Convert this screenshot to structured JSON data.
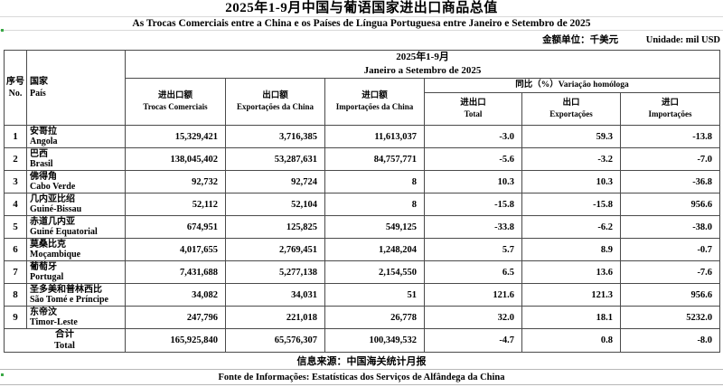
{
  "page": {
    "title_zh": "2025年1-9月中国与葡语国家进出口商品总值",
    "title_pt": "As Trocas Comerciais entre a China e os Países de Língua Portuguesa entre Janeiro e Setembro de 2025",
    "unit_zh": "金额单位：千美元",
    "unit_pt": "Unidade: mil USD"
  },
  "table": {
    "header": {
      "no_zh": "序号",
      "no_pt": "No.",
      "country_zh": "国家",
      "country_pt": "País",
      "period_zh": "2025年1-9月",
      "period_pt": "Janeiro a Setembro de 2025",
      "yoy": "同比（%）Variação homóloga",
      "cols": [
        {
          "zh": "进出口额",
          "pt": "Trocas Comerciais"
        },
        {
          "zh": "出口额",
          "pt": "Exportações da China"
        },
        {
          "zh": "进口额",
          "pt": "Importações da China"
        },
        {
          "zh": "进出口",
          "pt": "Total"
        },
        {
          "zh": "出口",
          "pt": "Exportações"
        },
        {
          "zh": "进口",
          "pt": "Importações"
        }
      ]
    },
    "rows": [
      {
        "no": "1",
        "zh": "安哥拉",
        "pt": "Angola",
        "trade": "15,329,421",
        "exp": "3,716,385",
        "imp": "11,613,037",
        "yoy_total": "-3.0",
        "yoy_exp": "59.3",
        "yoy_imp": "-13.8"
      },
      {
        "no": "2",
        "zh": "巴西",
        "pt": "Brasil",
        "trade": "138,045,402",
        "exp": "53,287,631",
        "imp": "84,757,771",
        "yoy_total": "-5.6",
        "yoy_exp": "-3.2",
        "yoy_imp": "-7.0"
      },
      {
        "no": "3",
        "zh": "佛得角",
        "pt": "Cabo Verde",
        "trade": "92,732",
        "exp": "92,724",
        "imp": "8",
        "yoy_total": "10.3",
        "yoy_exp": "10.3",
        "yoy_imp": "-36.8"
      },
      {
        "no": "4",
        "zh": "几内亚比绍",
        "pt": "Guiné-Bissau",
        "trade": "52,112",
        "exp": "52,104",
        "imp": "8",
        "yoy_total": "-15.8",
        "yoy_exp": "-15.8",
        "yoy_imp": "956.6"
      },
      {
        "no": "5",
        "zh": "赤道几内亚",
        "pt": "Guiné Equatorial",
        "trade": "674,951",
        "exp": "125,825",
        "imp": "549,125",
        "yoy_total": "-33.8",
        "yoy_exp": "-6.2",
        "yoy_imp": "-38.0"
      },
      {
        "no": "6",
        "zh": "莫桑比克",
        "pt": "Moçambique",
        "trade": "4,017,655",
        "exp": "2,769,451",
        "imp": "1,248,204",
        "yoy_total": "5.7",
        "yoy_exp": "8.9",
        "yoy_imp": "-0.7"
      },
      {
        "no": "7",
        "zh": "葡萄牙",
        "pt": "Portugal",
        "trade": "7,431,688",
        "exp": "5,277,138",
        "imp": "2,154,550",
        "yoy_total": "6.5",
        "yoy_exp": "13.6",
        "yoy_imp": "-7.6"
      },
      {
        "no": "8",
        "zh": "圣多美和普林西比",
        "pt": "São Tomé e Príncipe",
        "trade": "34,082",
        "exp": "34,031",
        "imp": "51",
        "yoy_total": "121.6",
        "yoy_exp": "121.3",
        "yoy_imp": "956.6"
      },
      {
        "no": "9",
        "zh": "东帝汶",
        "pt": "Timor-Leste",
        "trade": "247,796",
        "exp": "221,018",
        "imp": "26,778",
        "yoy_total": "32.0",
        "yoy_exp": "18.1",
        "yoy_imp": "5232.0"
      }
    ],
    "total": {
      "zh": "合计",
      "pt": "Total",
      "trade": "165,925,840",
      "exp": "65,576,307",
      "imp": "100,349,532",
      "yoy_total": "-4.7",
      "yoy_exp": "0.8",
      "yoy_imp": "-8.0"
    }
  },
  "footer": {
    "source_zh": "信息来源：中国海关统计月报",
    "source_pt": "Fonte de Informações: Estatísticas dos Serviços de Alfândega da China"
  },
  "colors": {
    "border": "#4a4a4a",
    "light_line": "#d9d9d9",
    "artifact_green": "#39a845"
  }
}
